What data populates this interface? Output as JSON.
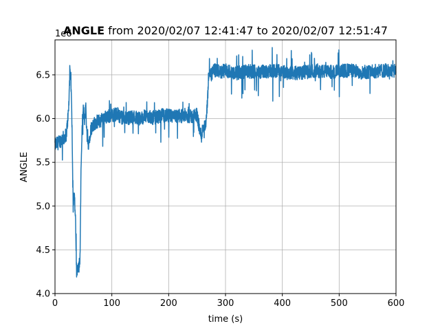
{
  "figure": {
    "title_bold": "ANGLE",
    "title_rest": " from 2020/02/07 12:41:47 to 2020/02/07 12:51:47",
    "exponent_label": "1e6"
  },
  "chart_data": {
    "type": "line",
    "xlabel": "time (s)",
    "ylabel": "ANGLE",
    "xlim": [
      0,
      600
    ],
    "ylim": [
      4000000,
      6900000
    ],
    "grid": true,
    "x_ticks": [
      0,
      100,
      200,
      300,
      400,
      500,
      600
    ],
    "x_tick_labels": [
      "0",
      "100",
      "200",
      "300",
      "400",
      "500",
      "600"
    ],
    "y_ticks": [
      4000000,
      4500000,
      5000000,
      5500000,
      6000000,
      6500000
    ],
    "y_tick_labels": [
      "4.0",
      "4.5",
      "5.0",
      "5.5",
      "6.0",
      "6.5"
    ],
    "colors": {
      "series": "#1f77b4",
      "grid": "#b0b0b0"
    },
    "series": [
      {
        "x": [
          0,
          5,
          10,
          15,
          20,
          24,
          26,
          28,
          30,
          32,
          34,
          36,
          38,
          40,
          42,
          44,
          46,
          48,
          50,
          52,
          54,
          56,
          58,
          60,
          62,
          64,
          66,
          70,
          80,
          90,
          100,
          110,
          120,
          130,
          140,
          150,
          160,
          170,
          180,
          190,
          200,
          210,
          220,
          230,
          240,
          250,
          255,
          258,
          260,
          262,
          265,
          268,
          270,
          272,
          275,
          280,
          290,
          300,
          320,
          340,
          360,
          380,
          400,
          420,
          440,
          460,
          480,
          500,
          520,
          540,
          560,
          580,
          600
        ],
        "y": [
          5700000,
          5720000,
          5750000,
          5780000,
          5820000,
          6100000,
          6500000,
          6450000,
          5900000,
          5050000,
          5150000,
          4850000,
          4200000,
          4350000,
          4300000,
          4400000,
          5500000,
          5950000,
          6100000,
          6000000,
          6150000,
          5850000,
          5700000,
          5750000,
          5850000,
          5900000,
          5920000,
          5950000,
          5980000,
          6020000,
          6040000,
          6050000,
          6000000,
          6010000,
          6020000,
          6000000,
          6030000,
          6010000,
          6020000,
          6040000,
          6030000,
          6020000,
          6030000,
          6040000,
          6020000,
          6050000,
          5850000,
          5800000,
          5900000,
          5920000,
          5900000,
          6150000,
          6450000,
          6520000,
          6500000,
          6550000,
          6530000,
          6550000,
          6520000,
          6540000,
          6530000,
          6550000,
          6540000,
          6520000,
          6530000,
          6550000,
          6530000,
          6540000,
          6550000,
          6530000,
          6540000,
          6550000,
          6540000
        ],
        "noise_amplitude": 80000
      }
    ]
  }
}
